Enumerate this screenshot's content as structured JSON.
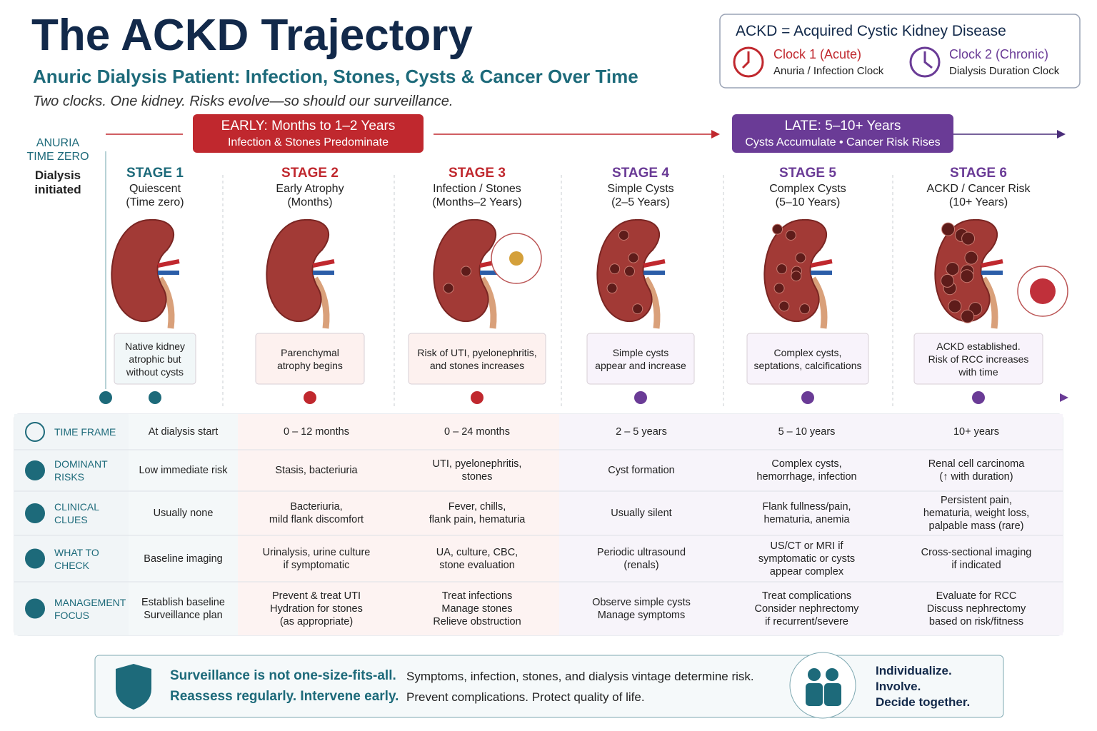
{
  "header": {
    "title": "The ACKD Trajectory",
    "subtitle": "Anuric Dialysis Patient: Infection, Stones, Cysts & Cancer Over Time",
    "tagline": "Two clocks. One kidney. Risks evolve—so should our surveillance."
  },
  "legend": {
    "definition": "ACKD = Acquired Cystic Kidney Disease",
    "clocks": [
      {
        "title": "Clock 1 (Acute)",
        "subtitle": "Anuria / Infection Clock"
      },
      {
        "title": "Clock 2 (Chronic)",
        "subtitle": "Dialysis Duration Clock"
      }
    ]
  },
  "start": {
    "label": "ANURIA\nTIME ZERO",
    "note": "Dialysis\ninitiated"
  },
  "phases": [
    {
      "title": "EARLY: Months to 1–2 Years",
      "subtitle": "Infection & Stones Predominate"
    },
    {
      "title": "LATE: 5–10+ Years",
      "subtitle": "Cysts Accumulate • Cancer Risk Rises"
    }
  ],
  "stages": [
    {
      "label": "STAGE 1",
      "name": "Quiescent",
      "period": "(Time zero)",
      "note": "Native kidney\natrophic but\nwithout cysts"
    },
    {
      "label": "STAGE 2",
      "name": "Early Atrophy",
      "period": "(Months)",
      "note": "Parenchymal\natrophy begins"
    },
    {
      "label": "STAGE 3",
      "name": "Infection / Stones",
      "period": "(Months–2 Years)",
      "note": "Risk of UTI, pyelonephritis,\nand stones increases"
    },
    {
      "label": "STAGE 4",
      "name": "Simple Cysts",
      "period": "(2–5 Years)",
      "note": "Simple cysts\nappear and increase"
    },
    {
      "label": "STAGE 5",
      "name": "Complex Cysts",
      "period": "(5–10 Years)",
      "note": "Complex cysts,\nseptations, calcifications"
    },
    {
      "label": "STAGE 6",
      "name": "ACKD / Cancer Risk",
      "period": "(10+ Years)",
      "note": "ACKD established.\nRisk of RCC increases\nwith time"
    }
  ],
  "table": {
    "rows": [
      {
        "header": "TIME FRAME",
        "cells": [
          "At dialysis start",
          "0 – 12 months",
          "0 – 24 months",
          "2 – 5 years",
          "5 – 10 years",
          "10+ years"
        ]
      },
      {
        "header": "DOMINANT\nRISKS",
        "cells": [
          "Low immediate risk",
          "Stasis, bacteriuria",
          "UTI, pyelonephritis,\nstones",
          "Cyst formation",
          "Complex cysts,\nhemorrhage, infection",
          "Renal cell carcinoma\n(↑ with duration)"
        ]
      },
      {
        "header": "CLINICAL\nCLUES",
        "cells": [
          "Usually none",
          "Bacteriuria,\nmild flank discomfort",
          "Fever, chills,\nflank pain, hematuria",
          "Usually silent",
          "Flank fullness/pain,\nhematuria, anemia",
          "Persistent pain,\nhematuria, weight loss,\npalpable mass (rare)"
        ]
      },
      {
        "header": "WHAT TO\nCHECK",
        "cells": [
          "Baseline imaging",
          "Urinalysis, urine culture\nif symptomatic",
          "UA, culture, CBC,\nstone evaluation",
          "Periodic ultrasound\n(renals)",
          "US/CT or MRI if\nsymptomatic or cysts\nappear complex",
          "Cross-sectional imaging\nif indicated"
        ]
      },
      {
        "header": "MANAGEMENT\nFOCUS",
        "cells": [
          "Establish baseline\nSurveillance plan",
          "Prevent & treat UTI\nHydration for stones\n(as appropriate)",
          "Treat infections\nManage stones\nRelieve obstruction",
          "Observe simple cysts\nManage symptoms",
          "Treat complications\nConsider nephrectomy\nif recurrent/severe",
          "Evaluate for RCC\nDiscuss nephrectomy\nbased on risk/fitness"
        ]
      }
    ]
  },
  "footer": {
    "bold1": "Surveillance is not one-size-fits-all.",
    "text1": "Symptoms, infection, stones, and dialysis vintage determine risk.",
    "bold2": "Reassess regularly.  Intervene early.",
    "text2": "Prevent complications.  Protect quality of life.",
    "right": [
      "Individualize.",
      "Involve.",
      "Decide together."
    ]
  }
}
